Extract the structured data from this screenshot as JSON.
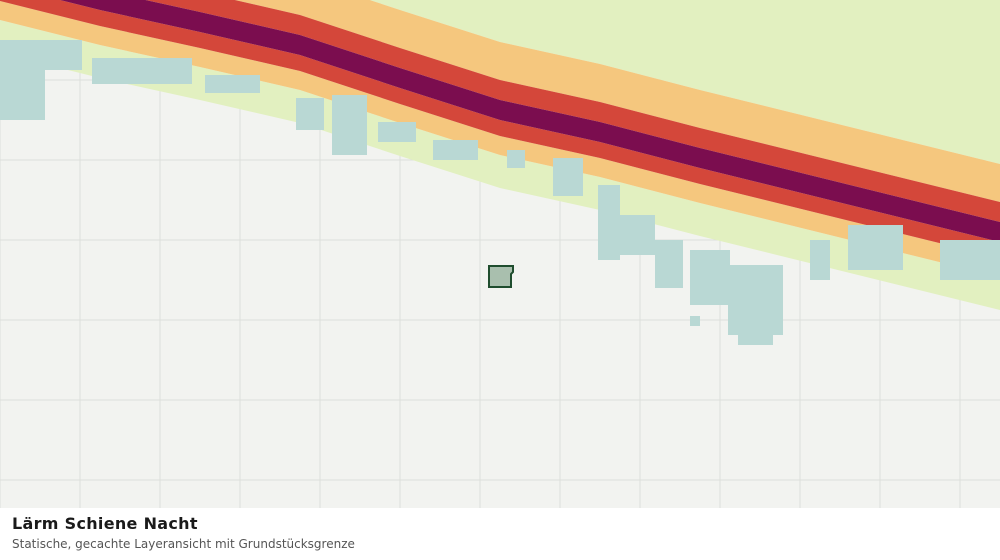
{
  "caption": {
    "title": "Lärm Schiene Nacht",
    "subtitle": "Statische, gecachte Layeransicht mit Grundstücksgrenze"
  }
}
